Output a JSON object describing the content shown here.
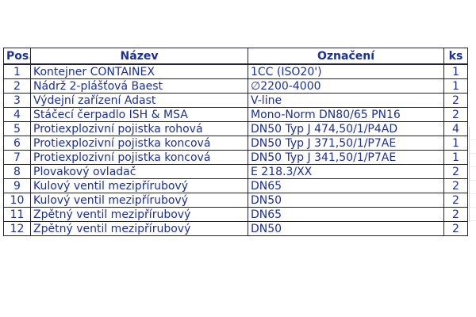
{
  "table": {
    "headers": {
      "pos": "Pos.",
      "name": "Název",
      "code": "Označení",
      "qty": "ks"
    },
    "rows": [
      {
        "pos": "1",
        "name": "Kontejner CONTAINEX",
        "code": "1CC (ISO20')",
        "qty": "1"
      },
      {
        "pos": "2",
        "name": "Nádrž 2-plášťová Baest",
        "code": "∅2200-4000",
        "qty": "1"
      },
      {
        "pos": "3",
        "name": "Výdejní zařízení Adast",
        "code": "V-line",
        "qty": "2"
      },
      {
        "pos": "4",
        "name": "Stáčecí čerpadlo ISH & MSA",
        "code": "Mono-Norm DN80/65 PN16",
        "qty": "2"
      },
      {
        "pos": "5",
        "name": "Protiexplozivní pojistka rohová",
        "code": "DN50 Typ J 474,50/1/P4AD",
        "qty": "4"
      },
      {
        "pos": "6",
        "name": "Protiexplozivní pojistka koncová",
        "code": "DN50 Typ J 371,50/1/P7AE",
        "qty": "1"
      },
      {
        "pos": "7",
        "name": "Protiexplozivní pojistka koncová",
        "code": "DN50 Typ J 341,50/1/P7AE",
        "qty": "1"
      },
      {
        "pos": "8",
        "name": "Plovakový ovladač",
        "code": "E 218.3/XX",
        "qty": "2"
      },
      {
        "pos": "9",
        "name": "Kulový ventil mezipřírubový",
        "code": "DN65",
        "qty": "2"
      },
      {
        "pos": "10",
        "name": "Kulový ventil mezipřírubový",
        "code": "DN50",
        "qty": "2"
      },
      {
        "pos": "11",
        "name": "Zpětný ventil mezipřírubový",
        "code": "DN65",
        "qty": "2"
      },
      {
        "pos": "12",
        "name": "Zpětný ventil mezipřírubový",
        "code": "DN50",
        "qty": "2"
      }
    ]
  },
  "colors": {
    "text": "#1a2fa0",
    "border": "#222233",
    "background": "#ffffff"
  }
}
